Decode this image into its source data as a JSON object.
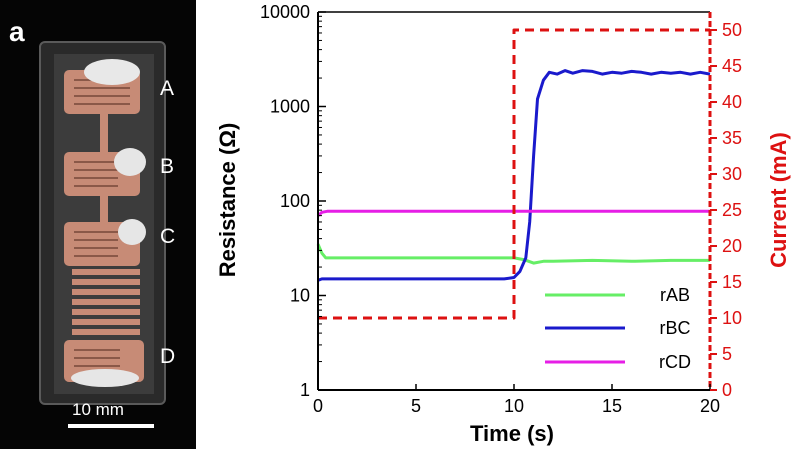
{
  "panel_letter": "a",
  "photo": {
    "electrode_labels": [
      "A",
      "B",
      "C",
      "D"
    ],
    "scale_label": "10 mm"
  },
  "colors": {
    "rAB": "#66ee66",
    "rBC": "#1a1acc",
    "rCD": "#e61ee6",
    "current": "#dd1111",
    "axis": "#000000"
  },
  "chart_data": {
    "type": "line",
    "xlabel": "Time (s)",
    "ylabel": "Resistance (Ω)",
    "y2label": "Current (mA)",
    "xlim": [
      0,
      20
    ],
    "ylim": [
      1,
      10000
    ],
    "yscale": "log",
    "y2lim": [
      0,
      52.5
    ],
    "x_ticks": [
      0,
      5,
      10,
      15,
      20
    ],
    "x_tick_labels": [
      "0",
      "5",
      "10",
      "15",
      "20"
    ],
    "y_ticks": [
      1,
      10,
      100,
      1000,
      10000
    ],
    "y_tick_labels": [
      "1",
      "10",
      "100",
      "1000",
      "10000"
    ],
    "y2_ticks": [
      0,
      5,
      10,
      15,
      20,
      25,
      30,
      35,
      40,
      45,
      50
    ],
    "y2_tick_labels": [
      "0",
      "5",
      "10",
      "15",
      "20",
      "25",
      "30",
      "35",
      "40",
      "45",
      "50"
    ],
    "series": [
      {
        "name": "rAB",
        "axis": "left",
        "style": "solid",
        "x": [
          0,
          0.2,
          0.4,
          10,
          10.5,
          11,
          11.5,
          12,
          14,
          16,
          18,
          20
        ],
        "y": [
          35,
          28,
          25,
          25,
          24,
          22,
          23,
          23,
          23.5,
          23,
          23.5,
          23.5
        ]
      },
      {
        "name": "rBC",
        "axis": "left",
        "style": "solid",
        "x": [
          0,
          0.2,
          5,
          9.5,
          10,
          10.3,
          10.6,
          10.8,
          11,
          11.2,
          11.5,
          11.8,
          12.2,
          12.6,
          13,
          13.5,
          14,
          14.5,
          15,
          15.5,
          16,
          16.5,
          17,
          17.5,
          18,
          18.5,
          19,
          19.5,
          20
        ],
        "y": [
          14.5,
          15,
          15,
          15,
          15.5,
          18,
          25,
          60,
          300,
          1200,
          1900,
          2300,
          2200,
          2400,
          2250,
          2400,
          2350,
          2200,
          2300,
          2250,
          2350,
          2300,
          2200,
          2300,
          2250,
          2300,
          2200,
          2300,
          2200
        ]
      },
      {
        "name": "rCD",
        "axis": "left",
        "style": "solid",
        "x": [
          0,
          0.2,
          0.5,
          5,
          10,
          15,
          20
        ],
        "y": [
          70,
          76,
          78,
          78,
          78,
          78,
          78
        ]
      },
      {
        "name": "Current",
        "axis": "right",
        "style": "dashed",
        "x": [
          0,
          10,
          10,
          20
        ],
        "y": [
          10,
          10,
          50,
          50
        ]
      }
    ],
    "legend": {
      "entries": [
        "rAB",
        "rBC",
        "rCD"
      ],
      "position": "bottom-right"
    }
  }
}
